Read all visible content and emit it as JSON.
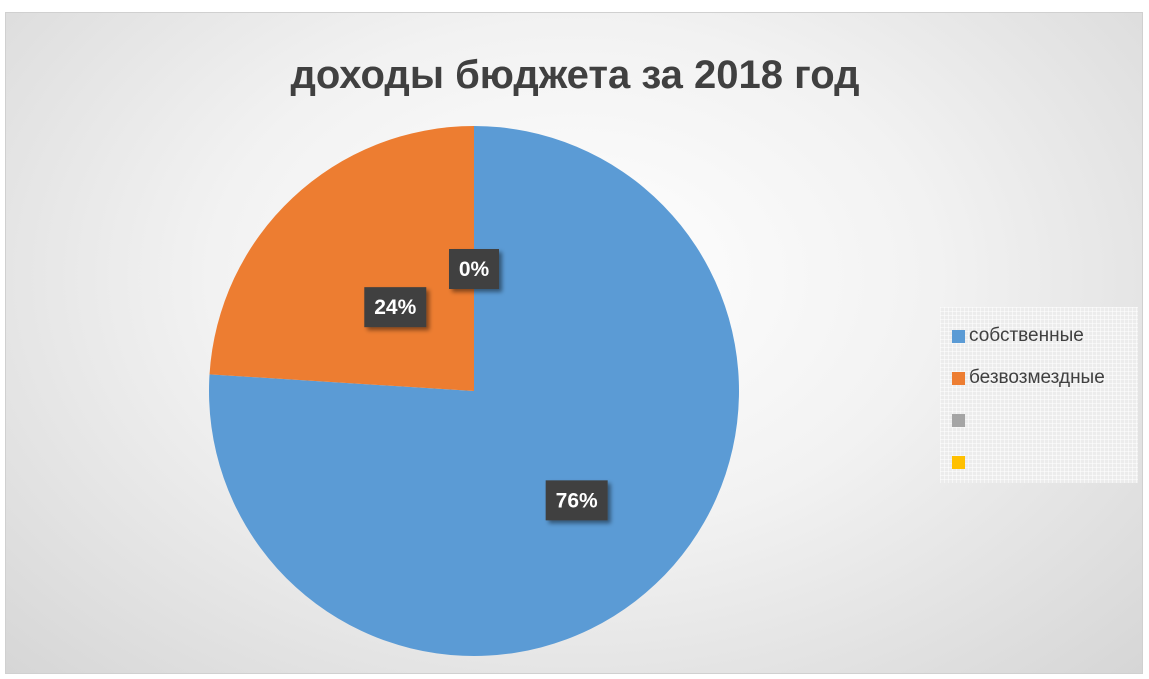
{
  "chart_data": {
    "type": "pie",
    "title": "доходы бюджета за 2018 год",
    "categories": [
      "собственные",
      "безвозмездные",
      "",
      ""
    ],
    "values": [
      76,
      24,
      0,
      0
    ],
    "data_labels": [
      "76%",
      "24%",
      "0%",
      ""
    ],
    "colors": [
      "#5B9BD5",
      "#ED7D31",
      "#A5A5A5",
      "#FFC000"
    ],
    "legend_position": "right",
    "data_label_style": {
      "background": "#404040",
      "text_color": "#ffffff"
    }
  }
}
